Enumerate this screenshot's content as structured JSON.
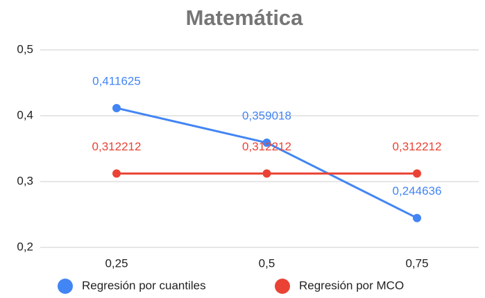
{
  "chart_data": {
    "type": "line",
    "title": "Matemática",
    "categories": [
      "0,25",
      "0,5",
      "0,75"
    ],
    "series": [
      {
        "name": "Regresión por cuantiles",
        "color": "#4285f4",
        "values": [
          0.411625,
          0.359018,
          0.244636
        ],
        "value_labels": [
          "0,411625",
          "0,359018",
          "0,244636"
        ]
      },
      {
        "name": "Regresión por MCO",
        "color": "#ea4335",
        "values": [
          0.312212,
          0.312212,
          0.312212
        ],
        "value_labels": [
          "0,312212",
          "0,312212",
          "0,312212"
        ]
      }
    ],
    "ylim": [
      0.2,
      0.5
    ],
    "yticks": [
      {
        "value": 0.2,
        "label": "0,2"
      },
      {
        "value": 0.3,
        "label": "0,3"
      },
      {
        "value": 0.4,
        "label": "0,4"
      },
      {
        "value": 0.5,
        "label": "0,5"
      }
    ],
    "grid": true,
    "legend": "bottom"
  }
}
